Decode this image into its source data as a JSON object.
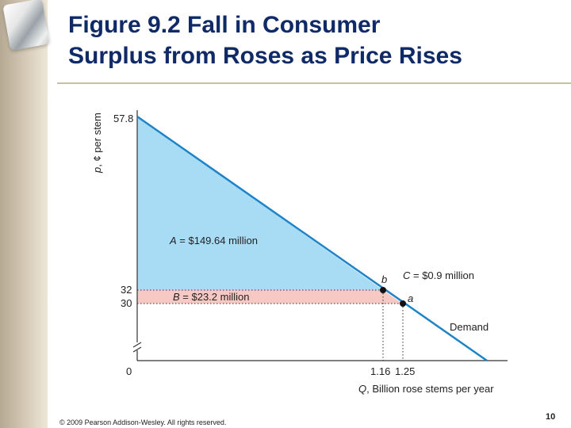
{
  "slide": {
    "title_line1": "Figure 9.2 Fall in Consumer",
    "title_line2": "Surplus from Roses as Price Rises",
    "copyright": "© 2009 Pearson Addison-Wesley. All rights reserved.",
    "page_number": "10"
  },
  "colors": {
    "title": "#0f2a66",
    "area_A": "#a8dcf5",
    "area_B": "#f7c9c4",
    "area_C": "#f7c9c4",
    "demand_line": "#1f83c8",
    "accent_bar": "#c9bfa5"
  },
  "chart_data": {
    "type": "area",
    "ylabel_var": "p",
    "ylabel_rest": ", ¢ per stem",
    "xlabel_var": "Q",
    "xlabel_rest": ", Billion rose stems per year",
    "y_ticks": [
      "57.8",
      "32",
      "30",
      "0"
    ],
    "x_ticks": [
      "1.16",
      "1.25"
    ],
    "demand": {
      "name": "Demand",
      "intercept_p": 57.8,
      "points": [
        {
          "q": 1.16,
          "p": 32
        },
        {
          "q": 1.25,
          "p": 30
        }
      ]
    },
    "points": [
      {
        "label": "b",
        "q": 1.16,
        "p": 32
      },
      {
        "label": "a",
        "q": 1.25,
        "p": 30
      }
    ],
    "areas": [
      {
        "var": "A",
        "text": " = $149.64 million"
      },
      {
        "var": "B",
        "text": " = $23.2 million"
      },
      {
        "var": "C",
        "text": " = $0.9 million"
      }
    ]
  }
}
